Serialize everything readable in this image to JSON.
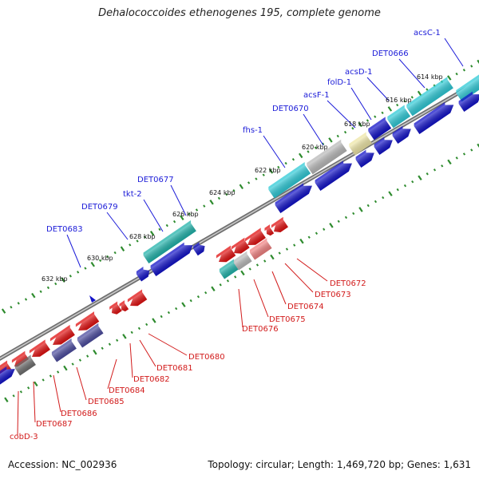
{
  "title": "Dehalococcoides ethenogenes 195, complete genome",
  "accession": "Accession: NC_002936",
  "summary": "Topology: circular; Length: 1,469,720 bp; Genes: 1,631",
  "colors": {
    "backbone": "#8a8a8a",
    "tick": "#2e8b2e",
    "forward": "#1212c8",
    "reverse": "#e01010",
    "cyan": "#2ec9d6",
    "teal": "#20b2aa",
    "gray_gene": "#b8b8b8",
    "khaki": "#ede5a6",
    "pink": "#f08080",
    "slate": "#4b4b9e",
    "dark_gray": "#6e6e6e",
    "label_blue": "#1b1bd8",
    "label_red": "#d21b1b"
  },
  "kbp_labels": [
    "614 kbp",
    "616 kbp",
    "618 kbp",
    "620 kbp",
    "622 kbp",
    "624 kbp",
    "626 kbp",
    "628 kbp",
    "630 kbp",
    "632 kbp"
  ],
  "forward_labels": [
    "acsC-1",
    "DET0666",
    "acsD-1",
    "folD-1",
    "acsF-1",
    "DET0670",
    "fhs-1",
    "DET0677",
    "tkt-2",
    "DET0679",
    "DET0683"
  ],
  "reverse_labels": [
    "DET0672",
    "DET0673",
    "DET0674",
    "DET0675",
    "DET0676",
    "DET0680",
    "DET0681",
    "DET0682",
    "DET0684",
    "DET0685",
    "DET0686",
    "DET0687",
    "cobD-3"
  ]
}
